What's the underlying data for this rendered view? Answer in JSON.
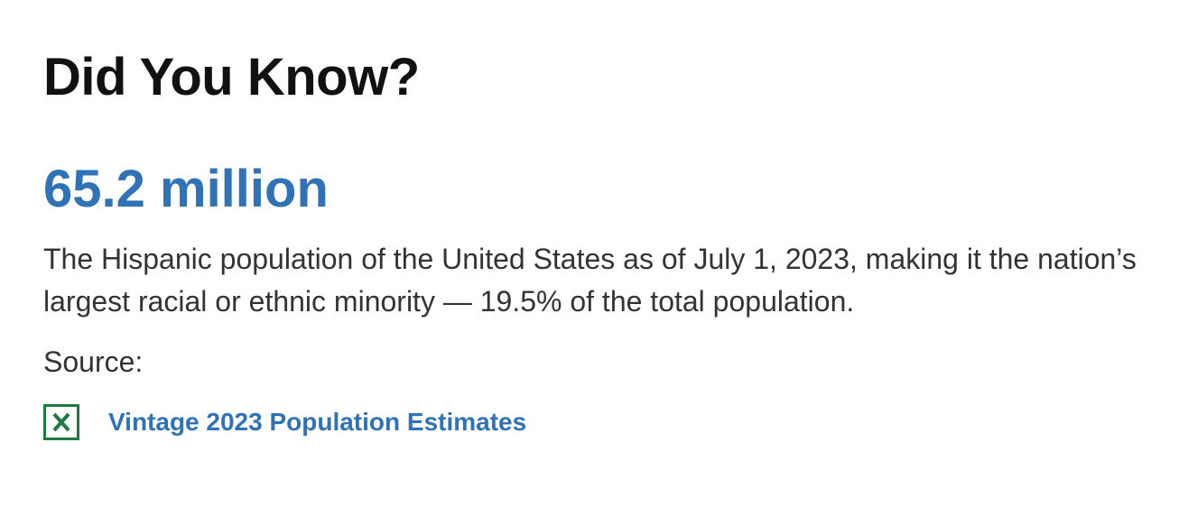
{
  "heading": "Did You Know?",
  "stat": {
    "value": "65.2 million",
    "description": "The Hispanic population of the United States as of July 1, 2023, making it the nation’s largest racial or ethnic minority — 19.5% of the total population."
  },
  "source": {
    "label": "Source:",
    "link": "Vintage 2023 Population Estimates"
  }
}
